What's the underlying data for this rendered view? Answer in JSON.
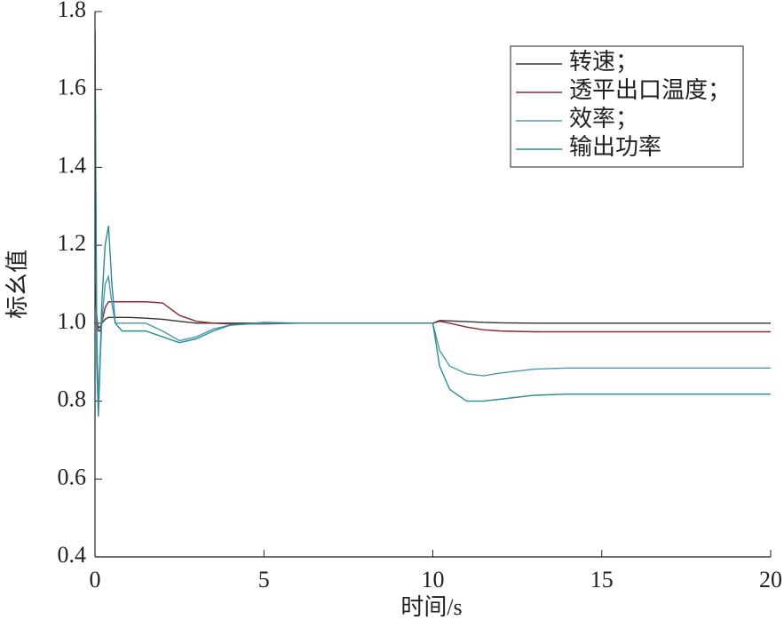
{
  "chart_data": {
    "type": "line",
    "x_label": "时间/s",
    "y_label": "标幺值",
    "x": [
      0,
      0.05,
      0.1,
      0.15,
      0.2,
      0.3,
      0.4,
      0.5,
      0.6,
      0.8,
      1,
      1.5,
      2,
      2.5,
      3,
      3.5,
      4,
      5,
      6,
      8,
      10,
      10.2,
      10.5,
      11,
      11.5,
      12,
      13,
      14,
      16,
      18,
      20
    ],
    "series": [
      {
        "name": "转速；",
        "color": "#333333",
        "values": [
          1.0,
          1.0,
          0.99,
          0.99,
          1.0,
          1.01,
          1.015,
          1.015,
          1.015,
          1.015,
          1.015,
          1.013,
          1.01,
          1.005,
          1.0,
          1.0,
          1.0,
          1.0,
          1.0,
          1.0,
          1.0,
          1.007,
          1.006,
          1.004,
          1.002,
          1.001,
          1.0,
          1.0,
          1.0,
          1.0,
          1.0
        ]
      },
      {
        "name": "透平出口温度；",
        "color": "#8b2a2a",
        "values": [
          1.1,
          1.02,
          0.98,
          0.98,
          1.0,
          1.04,
          1.055,
          1.055,
          1.055,
          1.055,
          1.055,
          1.055,
          1.052,
          1.02,
          1.005,
          1.0,
          0.998,
          0.998,
          1.0,
          1.0,
          1.0,
          1.005,
          1.0,
          0.99,
          0.983,
          0.98,
          0.978,
          0.978,
          0.978,
          0.978,
          0.978
        ]
      },
      {
        "name": "效率；",
        "color": "#4a9ab0",
        "values": [
          1.75,
          1.0,
          0.8,
          0.9,
          1.0,
          1.1,
          1.12,
          1.05,
          1.0,
          1.0,
          1.0,
          1.0,
          0.98,
          0.955,
          0.965,
          0.985,
          0.995,
          1.0,
          1.0,
          1.0,
          1.0,
          0.93,
          0.89,
          0.87,
          0.865,
          0.872,
          0.882,
          0.885,
          0.885,
          0.885,
          0.885
        ]
      },
      {
        "name": "输出功率",
        "color": "#2a8a9a",
        "values": [
          1.75,
          0.9,
          0.76,
          0.9,
          1.05,
          1.2,
          1.25,
          1.1,
          1.0,
          0.98,
          0.98,
          0.98,
          0.965,
          0.95,
          0.96,
          0.98,
          0.995,
          1.002,
          1.0,
          1.0,
          1.0,
          0.89,
          0.83,
          0.8,
          0.8,
          0.805,
          0.815,
          0.818,
          0.818,
          0.818,
          0.818
        ]
      }
    ],
    "xlim": [
      0,
      20
    ],
    "xticks": [
      0,
      5,
      10,
      15,
      20
    ],
    "ylim": [
      0.4,
      1.8
    ],
    "yticks": [
      0.4,
      0.6,
      0.8,
      {
        "value": 1,
        "label": "1.0"
      },
      1.2,
      1.4,
      1.6,
      1.8
    ],
    "legend": "upper right"
  }
}
